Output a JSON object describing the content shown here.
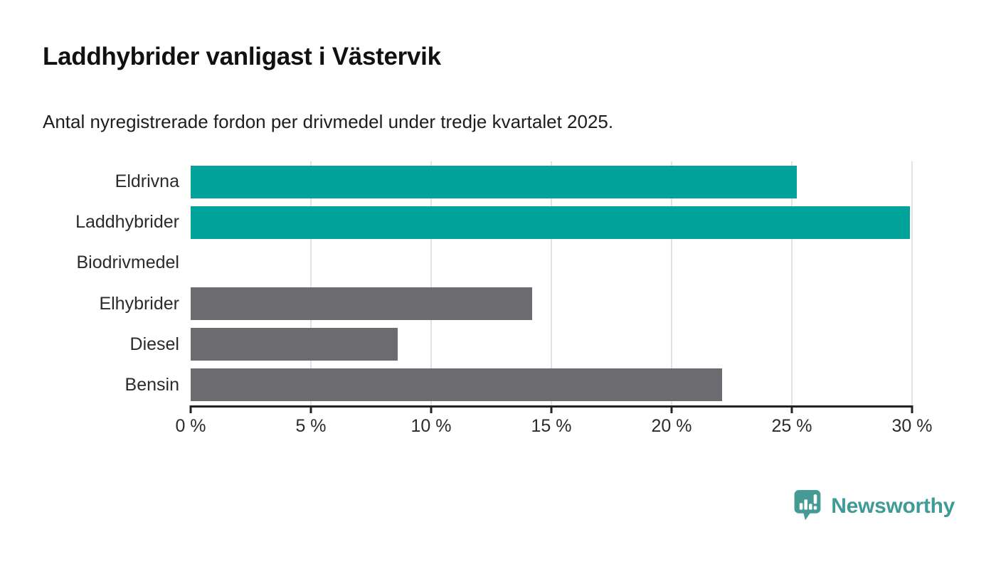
{
  "header": {
    "title": "Laddhybrider vanligast i Västervik",
    "subtitle": "Antal nyregistrerade fordon per drivmedel under tredje kvartalet 2025."
  },
  "chart_data": {
    "type": "bar",
    "orientation": "horizontal",
    "title": "Laddhybrider vanligast i Västervik",
    "subtitle": "Antal nyregistrerade fordon per drivmedel under tredje kvartalet 2025.",
    "categories": [
      "Eldrivna",
      "Laddhybrider",
      "Biodrivmedel",
      "Elhybrider",
      "Diesel",
      "Bensin"
    ],
    "values": [
      25.2,
      29.9,
      0,
      14.2,
      8.6,
      22.1
    ],
    "unit": "%",
    "bar_colors": [
      "#00a39a",
      "#00a39a",
      "#00a39a",
      "#6c6c70",
      "#6c6c70",
      "#6c6c70"
    ],
    "highlight_color": "#00a39a",
    "default_color": "#6c6c70",
    "xlabel": "",
    "ylabel": "",
    "xlim": [
      0,
      30
    ],
    "x_ticks": [
      0,
      5,
      10,
      15,
      20,
      25,
      30
    ],
    "x_tick_labels": [
      "0 %",
      "5 %",
      "10 %",
      "15 %",
      "20 %",
      "25 %",
      "30 %"
    ],
    "grid": "vertical-only",
    "gridline_color": "#e2e2e2",
    "axis_color": "#222222",
    "legend": "none",
    "data_labels": "none"
  },
  "footer": {
    "brand": "Newsworthy",
    "brand_color": "#3e9b95",
    "icon_color": "#459a95"
  }
}
